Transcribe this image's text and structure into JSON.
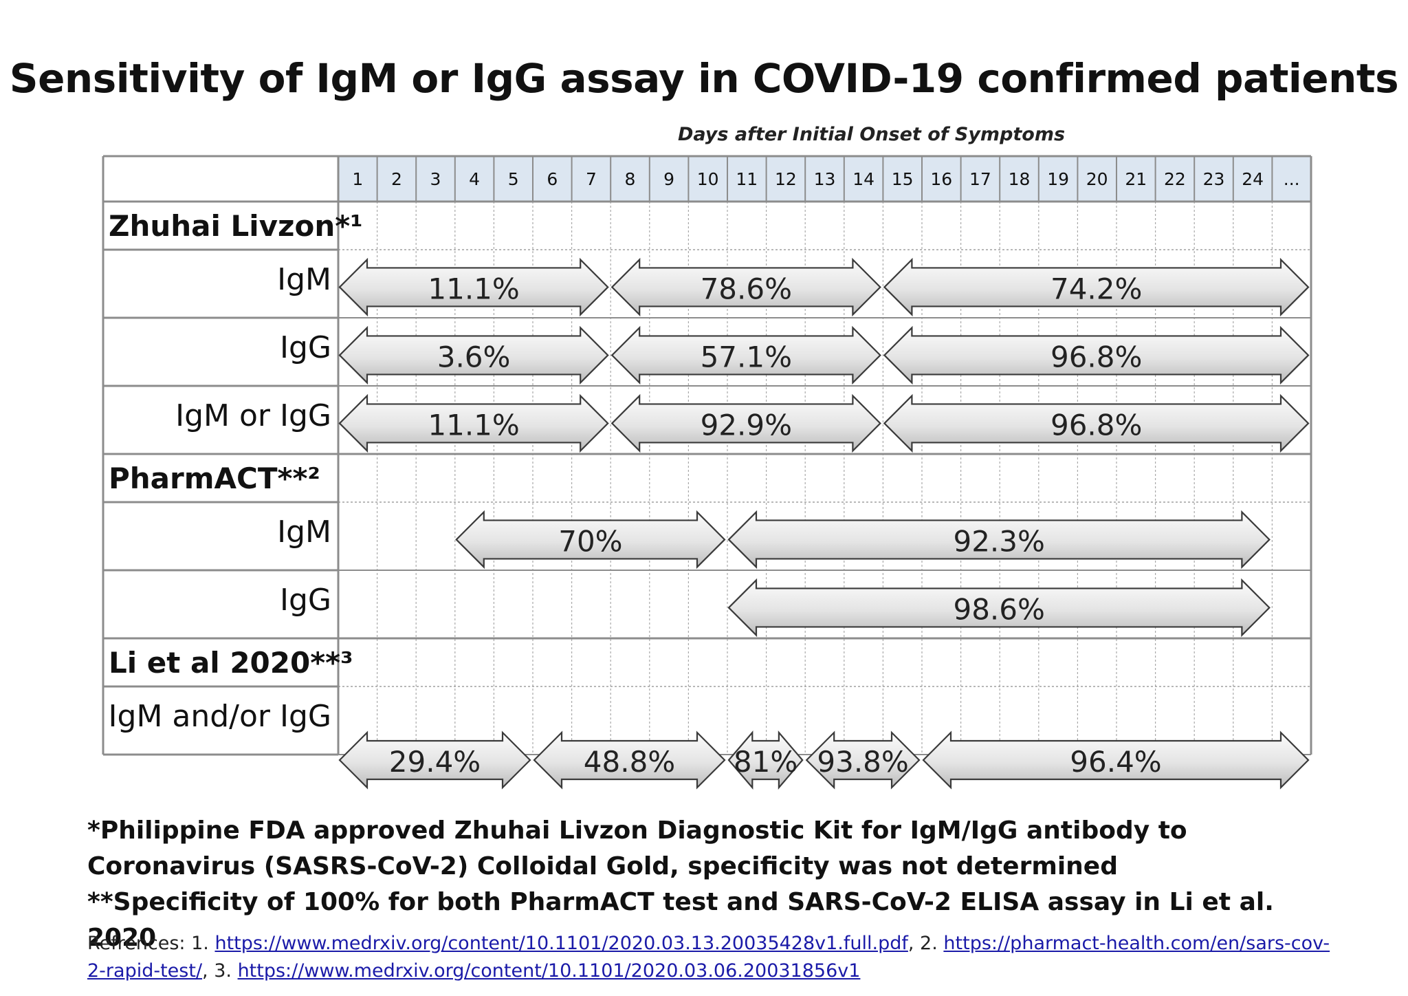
{
  "title": "Sensitivity of IgM or IgG assay in COVID-19 confirmed patients",
  "chart_data": {
    "type": "table",
    "x_axis_label": "Days after Initial Onset of Symptoms",
    "days": [
      "1",
      "2",
      "3",
      "4",
      "5",
      "6",
      "7",
      "8",
      "9",
      "10",
      "11",
      "12",
      "13",
      "14",
      "15",
      "16",
      "17",
      "18",
      "19",
      "20",
      "21",
      "22",
      "23",
      "24",
      "..."
    ],
    "rows": [
      {
        "label": "Zhuhai Livzon*¹",
        "kind": "group"
      },
      {
        "label": "IgM",
        "kind": "assay",
        "spans": [
          {
            "start": 1,
            "end": 7,
            "value": "11.1%"
          },
          {
            "start": 8,
            "end": 14,
            "value": "78.6%"
          },
          {
            "start": 15,
            "end": 25,
            "value": "74.2%"
          }
        ]
      },
      {
        "label": "IgG",
        "kind": "assay",
        "spans": [
          {
            "start": 1,
            "end": 7,
            "value": "3.6%"
          },
          {
            "start": 8,
            "end": 14,
            "value": "57.1%"
          },
          {
            "start": 15,
            "end": 25,
            "value": "96.8%"
          }
        ]
      },
      {
        "label": "IgM or IgG",
        "kind": "assay",
        "spans": [
          {
            "start": 1,
            "end": 7,
            "value": "11.1%"
          },
          {
            "start": 8,
            "end": 14,
            "value": "92.9%"
          },
          {
            "start": 15,
            "end": 25,
            "value": "96.8%"
          }
        ]
      },
      {
        "label": "PharmACT**²",
        "kind": "group"
      },
      {
        "label": "IgM",
        "kind": "assay",
        "spans": [
          {
            "start": 4,
            "end": 10,
            "value": "70%"
          },
          {
            "start": 11,
            "end": 24,
            "value": "92.3%"
          }
        ]
      },
      {
        "label": "IgG",
        "kind": "assay",
        "spans": [
          {
            "start": 11,
            "end": 24,
            "value": "98.6%"
          }
        ]
      },
      {
        "label": "Li et al 2020**³",
        "kind": "group"
      },
      {
        "label": "IgM and/or IgG",
        "kind": "assay",
        "spans": [
          {
            "start": 1,
            "end": 5,
            "value": "29.4%"
          },
          {
            "start": 6,
            "end": 10,
            "value": "48.8%"
          },
          {
            "start": 11,
            "end": 12,
            "value": "81%"
          },
          {
            "start": 13,
            "end": 15,
            "value": "93.8%"
          },
          {
            "start": 16,
            "end": 25,
            "value": "96.4%"
          }
        ]
      }
    ]
  },
  "footnotes": {
    "fda": "*Philippine FDA approved Zhuhai Livzon Diagnostic Kit for IgM/IgG antibody to Coronavirus (SASRS-CoV-2) Colloidal Gold, specificity was not determined",
    "specificity": "**Specificity of 100% for both PharmACT test and SARS-CoV-2 ELISA assay in Li et al. 2020"
  },
  "references": {
    "prefix": "Refrences: 1. ",
    "ref1": "https://www.medrxiv.org/content/10.1101/2020.03.13.20035428v1.full.pdf",
    "sep1": ", 2. ",
    "ref2": "https://pharmact-health.com/en/sars-cov-2-rapid-test/",
    "sep2": ", 3. ",
    "ref3": "https://www.medrxiv.org/content/10.1101/2020.03.06.20031856v1"
  },
  "colors": {
    "header_fill": "#dce6f1",
    "grid_line": "#8c8c8c",
    "arrow_top": "#fbfbfb",
    "arrow_bottom": "#bcbcbc",
    "arrow_stroke": "#3a3a3a"
  }
}
